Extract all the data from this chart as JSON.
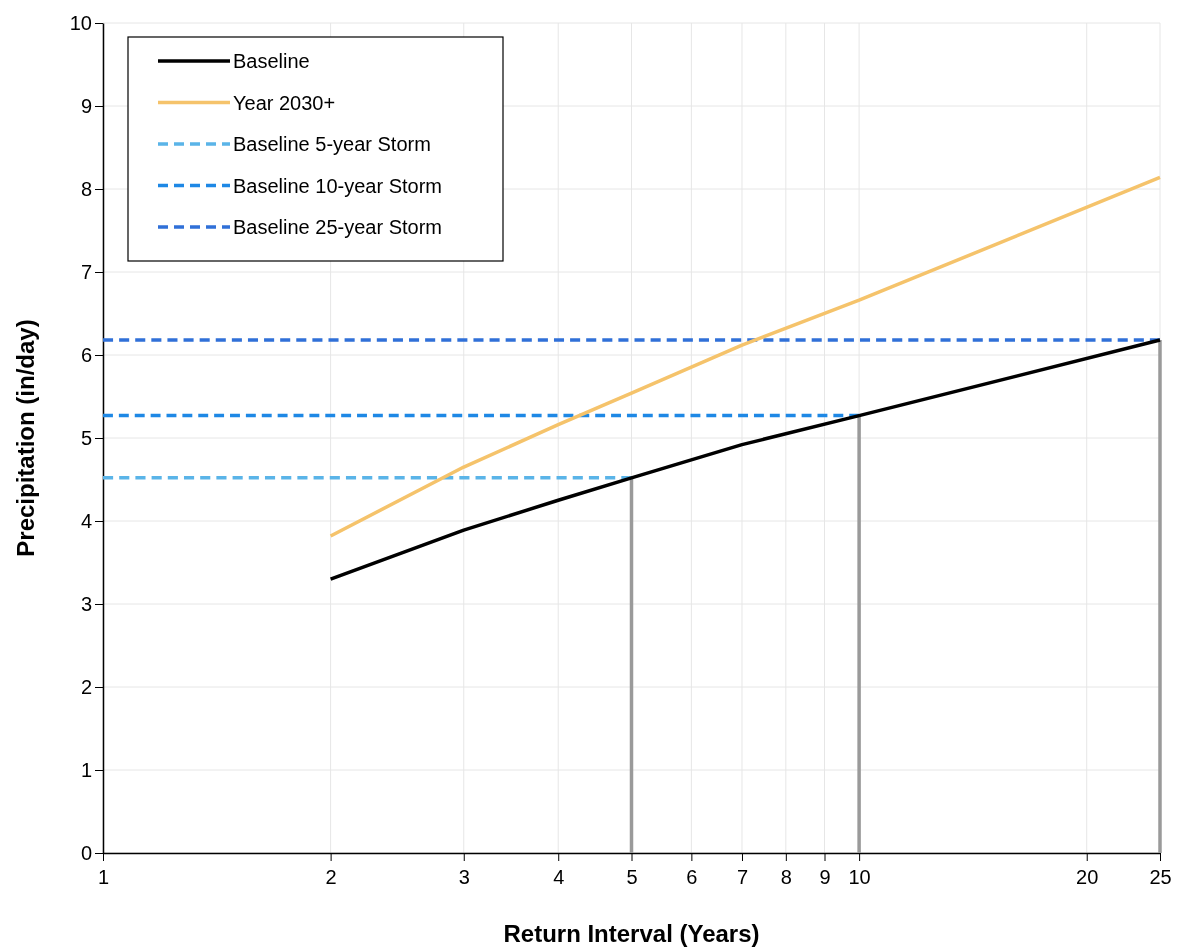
{
  "chart_data": {
    "type": "line",
    "xlabel": "Return Interval (Years)",
    "ylabel": "Precipitation (in/day)",
    "log": "x",
    "xlim": [
      1,
      25
    ],
    "xticks": [
      1,
      2,
      3,
      4,
      5,
      6,
      7,
      8,
      9,
      10,
      20,
      25
    ],
    "ylim": [
      0,
      10
    ],
    "yticks": [
      0,
      1,
      2,
      3,
      4,
      5,
      6,
      7,
      8,
      9,
      10
    ],
    "grid": true,
    "legend": "top left",
    "line_style": "solid",
    "marker": "none",
    "series": [
      {
        "name": "Baseline",
        "color": "#000000",
        "x": [
          2,
          3,
          4,
          5,
          7,
          10,
          25
        ],
        "values": [
          3.3,
          3.89,
          4.25,
          4.52,
          4.92,
          5.27,
          6.18
        ]
      },
      {
        "name": "Year 2030+",
        "color": "#f5c36b",
        "x": [
          2,
          3,
          4,
          5,
          7,
          10,
          25
        ],
        "values": [
          3.82,
          4.65,
          5.16,
          5.54,
          6.12,
          6.66,
          8.14
        ]
      },
      {
        "name": "Baseline 5-year Storm",
        "color": "#5ab4e8",
        "line_style": "dashed",
        "x": [
          1,
          5
        ],
        "values": [
          4.52,
          4.52
        ]
      },
      {
        "name": "Baseline 10-year Storm",
        "color": "#1e88e5",
        "line_style": "dashed",
        "x": [
          1,
          10
        ],
        "values": [
          5.27,
          5.27
        ]
      },
      {
        "name": "Baseline 25-year Storm",
        "color": "#3070d8",
        "line_style": "dashed",
        "x": [
          1,
          25
        ],
        "values": [
          6.18,
          6.18
        ]
      },
      {
        "color": "#9a9a9a",
        "x": [
          5,
          5
        ],
        "values": [
          0,
          4.52
        ]
      },
      {
        "color": "#9a9a9a",
        "x": [
          10,
          10
        ],
        "values": [
          0,
          5.27
        ]
      },
      {
        "color": "#9a9a9a",
        "x": [
          25,
          25
        ],
        "values": [
          0,
          6.18
        ]
      }
    ]
  }
}
